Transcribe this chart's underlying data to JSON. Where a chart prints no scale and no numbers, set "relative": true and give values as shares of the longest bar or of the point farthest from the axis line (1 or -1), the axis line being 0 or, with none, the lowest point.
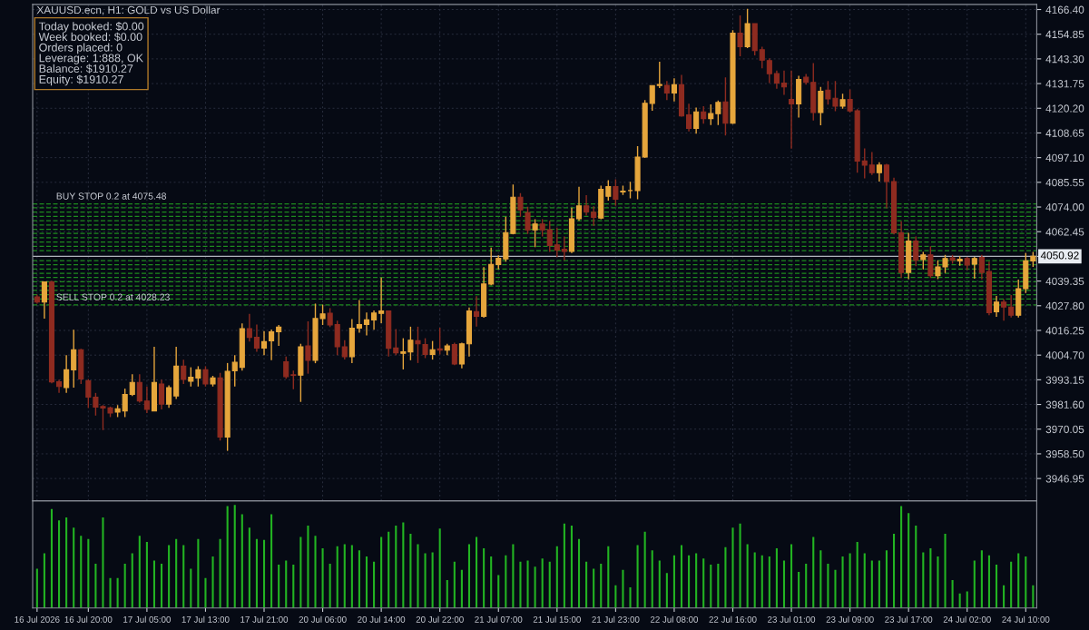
{
  "chart_data": [
    {
      "type": "candlestick",
      "title": "XAUUSD.ecn, H1: GOLD vs US Dollar",
      "annotations": [
        "Today booked: $0.00",
        "Week booked: $0.00",
        "Orders placed: 0",
        "Leverage: 1:888, OK",
        "Balance: $1910.27",
        "Equity: $1910.27"
      ],
      "categories": [
        null,
        null,
        null,
        null,
        null,
        null,
        null,
        null,
        null,
        null,
        null,
        null,
        null,
        null,
        null,
        null,
        null,
        null,
        null,
        null,
        null,
        null,
        null,
        null,
        null,
        null,
        null,
        null,
        null,
        null,
        null,
        null,
        null,
        null,
        null,
        null,
        null,
        null,
        null,
        null,
        null,
        null,
        null,
        null,
        null,
        null,
        null,
        null,
        null,
        null,
        null,
        null,
        null,
        null,
        null,
        null,
        null,
        null,
        null,
        null,
        null,
        null,
        null,
        null,
        null,
        null,
        null,
        null,
        null,
        null,
        null,
        null,
        null,
        null,
        null,
        null,
        null,
        null,
        null,
        null,
        null,
        null,
        null,
        null,
        null,
        null,
        null,
        null,
        null,
        null,
        null,
        null,
        null,
        null,
        null,
        null,
        null,
        null,
        null,
        null,
        null,
        null,
        null,
        null,
        null,
        null,
        null,
        null,
        null,
        null,
        null,
        null,
        null,
        null,
        null,
        null,
        null,
        null,
        null,
        null,
        null,
        null,
        null,
        null,
        null,
        null,
        null,
        null,
        null,
        null,
        null,
        null,
        null,
        null,
        null,
        null,
        null
      ],
      "ohlc": [
        [
          4031.9,
          4033.0,
          4028.8,
          4029.5
        ],
        [
          4029.5,
          4038.9,
          4021.8,
          4038.9
        ],
        [
          4038.9,
          4039.5,
          3991.5,
          3992.2
        ],
        [
          3992.2,
          3993.2,
          3987.0,
          3990.0
        ],
        [
          3989.5,
          4004.7,
          3987.0,
          3997.8
        ],
        [
          3997.8,
          4016.6,
          3989.5,
          4007.2
        ],
        [
          4007.2,
          4007.6,
          3991.2,
          3993.5
        ],
        [
          3992.6,
          3993.5,
          3980.0,
          3985.0
        ],
        [
          3985.0,
          3987.0,
          3976.4,
          3980.4
        ],
        [
          3980.6,
          3981.3,
          3969.6,
          3980.0
        ],
        [
          3980.0,
          3980.6,
          3975.7,
          3977.6
        ],
        [
          3978.0,
          3981.3,
          3975.7,
          3979.6
        ],
        [
          3978.6,
          3989.0,
          3975.7,
          3986.3
        ],
        [
          3986.3,
          3995.7,
          3985.6,
          3991.9
        ],
        [
          3991.9,
          3995.7,
          3982.5,
          3983.2
        ],
        [
          3983.2,
          3990.0,
          3977.6,
          3979.3
        ],
        [
          3978.6,
          4008.6,
          3978.6,
          3991.9
        ],
        [
          3991.2,
          3993.2,
          3979.3,
          3981.8
        ],
        [
          3981.8,
          3990.5,
          3980.0,
          3989.5
        ],
        [
          3985.6,
          4008.6,
          3984.2,
          3999.5
        ],
        [
          3999.5,
          4002.5,
          3991.2,
          3993.3
        ],
        [
          3992.5,
          3999.0,
          3990.0,
          3994.3
        ],
        [
          3994.0,
          3999.5,
          3990.0,
          3997.8
        ],
        [
          3997.8,
          3999.5,
          3990.0,
          3991.2
        ],
        [
          3991.2,
          3995.0,
          3990.0,
          3994.0
        ],
        [
          3994.0,
          3996.4,
          3964.7,
          3966.4
        ],
        [
          3966.4,
          4001.0,
          3959.9,
          3997.1
        ],
        [
          3997.4,
          4004.7,
          3990.0,
          4001.3
        ],
        [
          3999.0,
          4019.5,
          3997.4,
          4017.1
        ],
        [
          4017.1,
          4024.0,
          4011.0,
          4013.0
        ],
        [
          4013.0,
          4019.0,
          4006.3,
          4008.0
        ],
        [
          4008.0,
          4015.9,
          4004.7,
          4011.0
        ],
        [
          4011.4,
          4016.7,
          4002.3,
          4015.6
        ],
        [
          4015.6,
          4018.8,
          4009.0,
          4017.8
        ],
        [
          4001.6,
          4004.0,
          3993.6,
          3994.6
        ],
        [
          3995.5,
          3997.4,
          3988.7,
          3995.2
        ],
        [
          3995.3,
          4010.0,
          3982.8,
          4008.6
        ],
        [
          4009.0,
          4020.5,
          3996.0,
          4002.3
        ],
        [
          4002.3,
          4028.8,
          4000.9,
          4021.8
        ],
        [
          4021.8,
          4028.3,
          4018.8,
          4024.0
        ],
        [
          4024.3,
          4026.7,
          4017.8,
          4018.8
        ],
        [
          4019.0,
          4020.8,
          4004.7,
          4008.6
        ],
        [
          4008.6,
          4011.7,
          4002.6,
          4004.0
        ],
        [
          4004.0,
          4021.6,
          4000.9,
          4017.3
        ],
        [
          4017.3,
          4030.5,
          4015.2,
          4019.0
        ],
        [
          4019.0,
          4024.6,
          4013.9,
          4021.2
        ],
        [
          4021.2,
          4025.6,
          4016.6,
          4024.4
        ],
        [
          4024.2,
          4041.0,
          4019.6,
          4025.3
        ],
        [
          4025.3,
          4025.6,
          4004.0,
          4007.9
        ],
        [
          4008.0,
          4016.9,
          4004.7,
          4005.8
        ],
        [
          4005.5,
          4012.6,
          3998.0,
          4006.2
        ],
        [
          4006.2,
          4018.0,
          4002.3,
          4011.7
        ],
        [
          4011.4,
          4018.0,
          4001.0,
          4010.0
        ],
        [
          4009.6,
          4012.6,
          4003.3,
          4005.0
        ],
        [
          4005.0,
          4011.3,
          4002.6,
          4007.2
        ],
        [
          4007.6,
          4017.5,
          4005.0,
          4007.0
        ],
        [
          4007.0,
          4010.0,
          4004.7,
          4009.0
        ],
        [
          4009.6,
          4010.5,
          4000.0,
          4000.5
        ],
        [
          4000.5,
          4010.5,
          3998.5,
          4010.0
        ],
        [
          4010.0,
          4027.0,
          4004.0,
          4025.3
        ],
        [
          4025.0,
          4032.3,
          4018.0,
          4022.9
        ],
        [
          4022.9,
          4045.9,
          4022.2,
          4038.0
        ],
        [
          4037.9,
          4055.0,
          4037.4,
          4047.1
        ],
        [
          4047.1,
          4051.4,
          4044.8,
          4050.0
        ],
        [
          4049.7,
          4069.4,
          4048.4,
          4062.0
        ],
        [
          4061.6,
          4084.5,
          4061.2,
          4078.6
        ],
        [
          4078.6,
          4080.5,
          4069.5,
          4072.7
        ],
        [
          4071.3,
          4074.0,
          4061.4,
          4063.3
        ],
        [
          4063.3,
          4068.3,
          4055.2,
          4066.0
        ],
        [
          4066.0,
          4068.3,
          4060.2,
          4063.3
        ],
        [
          4063.4,
          4067.5,
          4053.0,
          4056.0
        ],
        [
          4056.3,
          4064.4,
          4050.5,
          4053.9
        ],
        [
          4054.2,
          4060.2,
          4049.1,
          4053.2
        ],
        [
          4053.2,
          4073.7,
          4052.5,
          4068.5
        ],
        [
          4068.5,
          4083.5,
          4067.5,
          4074.5
        ],
        [
          4074.5,
          4079.5,
          4070.0,
          4071.7
        ],
        [
          4071.5,
          4074.3,
          4065.2,
          4069.2
        ],
        [
          4068.8,
          4084.0,
          4068.3,
          4082.3
        ],
        [
          4079.0,
          4086.5,
          4077.0,
          4083.6
        ],
        [
          4083.6,
          4087.0,
          4074.5,
          4077.6
        ],
        [
          4081.0,
          4084.0,
          4079.6,
          4081.4
        ],
        [
          4081.7,
          4085.8,
          4078.0,
          4081.7
        ],
        [
          4081.7,
          4102.5,
          4077.6,
          4097.4
        ],
        [
          4097.4,
          4124.0,
          4097.0,
          4122.5
        ],
        [
          4122.5,
          4130.8,
          4119.0,
          4130.8
        ],
        [
          4130.9,
          4142.0,
          4129.7,
          4131.3
        ],
        [
          4130.9,
          4133.0,
          4124.0,
          4127.4
        ],
        [
          4127.4,
          4134.2,
          4123.4,
          4131.2
        ],
        [
          4131.2,
          4135.8,
          4116.3,
          4116.6
        ],
        [
          4117.1,
          4122.3,
          4109.4,
          4110.8
        ],
        [
          4110.8,
          4120.5,
          4108.3,
          4118.5
        ],
        [
          4118.5,
          4121.2,
          4113.0,
          4115.4
        ],
        [
          4115.4,
          4122.0,
          4112.3,
          4117.7
        ],
        [
          4117.7,
          4123.8,
          4112.3,
          4122.9
        ],
        [
          4123.2,
          4134.7,
          4107.5,
          4113.2
        ],
        [
          4113.2,
          4156.7,
          4112.9,
          4155.3
        ],
        [
          4155.3,
          4163.6,
          4144.5,
          4149.0
        ],
        [
          4149.0,
          4166.7,
          4148.3,
          4159.8
        ],
        [
          4159.8,
          4159.8,
          4145.0,
          4147.2
        ],
        [
          4147.6,
          4149.0,
          4138.9,
          4142.7
        ],
        [
          4142.5,
          4143.6,
          4132.0,
          4136.4
        ],
        [
          4136.4,
          4137.8,
          4129.3,
          4132.0
        ],
        [
          4132.0,
          4137.8,
          4126.5,
          4130.2
        ],
        [
          4124.3,
          4137.8,
          4101.3,
          4122.2
        ],
        [
          4122.2,
          4135.4,
          4115.9,
          4133.7
        ],
        [
          4134.7,
          4136.2,
          4131.2,
          4132.3
        ],
        [
          4132.3,
          4141.3,
          4114.5,
          4118.2
        ],
        [
          4118.2,
          4130.2,
          4112.2,
          4128.1
        ],
        [
          4128.7,
          4132.9,
          4121.9,
          4124.6
        ],
        [
          4124.9,
          4132.9,
          4118.8,
          4121.2
        ],
        [
          4121.2,
          4127.0,
          4120.0,
          4124.2
        ],
        [
          4124.3,
          4129.0,
          4118.2,
          4119.0
        ],
        [
          4119.0,
          4119.8,
          4090.1,
          4095.5
        ],
        [
          4095.5,
          4101.4,
          4087.4,
          4093.6
        ],
        [
          4093.6,
          4099.7,
          4089.0,
          4090.1
        ],
        [
          4090.1,
          4094.9,
          4085.9,
          4093.6
        ],
        [
          4093.6,
          4094.2,
          4073.4,
          4085.9
        ],
        [
          4085.9,
          4087.7,
          4061.2,
          4061.9
        ],
        [
          4061.9,
          4067.3,
          4040.8,
          4043.4
        ],
        [
          4043.4,
          4061.9,
          4040.2,
          4058.1
        ],
        [
          4058.1,
          4060.2,
          4046.3,
          4049.1
        ],
        [
          4049.4,
          4053.0,
          4044.8,
          4051.6
        ],
        [
          4051.6,
          4055.6,
          4040.8,
          4041.9
        ],
        [
          4041.9,
          4049.1,
          4040.2,
          4046.0
        ],
        [
          4046.0,
          4051.6,
          4043.1,
          4049.9
        ],
        [
          4050.2,
          4051.6,
          4047.5,
          4049.1
        ],
        [
          4048.8,
          4051.0,
          4046.5,
          4049.6
        ],
        [
          4049.9,
          4050.6,
          4044.5,
          4046.9
        ],
        [
          4047.3,
          4050.6,
          4040.5,
          4049.9
        ],
        [
          4050.4,
          4051.6,
          4040.1,
          4043.4
        ],
        [
          4043.8,
          4048.4,
          4023.4,
          4024.6
        ],
        [
          4025.0,
          4032.4,
          4022.6,
          4029.5
        ],
        [
          4029.5,
          4030.8,
          4020.8,
          4027.2
        ],
        [
          4027.2,
          4032.8,
          4022.3,
          4023.4
        ],
        [
          4023.4,
          4040.0,
          4022.3,
          4035.8
        ],
        [
          4035.8,
          4052.5,
          4033.8,
          4048.8
        ],
        [
          4048.8,
          4053.0,
          4046.0,
          4050.9
        ]
      ],
      "colors": [
        "#8e2b20",
        "#e6a63c",
        "#8e2b20",
        "#8e2b20",
        "#e6a63c",
        "#e6a63c",
        "#8e2b20",
        "#8e2b20",
        "#8e2b20",
        "#8e2b20",
        "#8e2b20",
        "#e6a63c",
        "#e6a63c",
        "#e6a63c",
        "#8e2b20",
        "#8e2b20",
        "#e6a63c",
        "#8e2b20",
        "#e6a63c",
        "#e6a63c",
        "#8e2b20",
        "#e6a63c",
        "#e6a63c",
        "#8e2b20",
        "#e6a63c",
        "#8e2b20",
        "#e6a63c",
        "#e6a63c",
        "#e6a63c",
        "#8e2b20",
        "#8e2b20",
        "#e6a63c",
        "#e6a63c",
        "#e6a63c",
        "#8e2b20",
        "#8e2b20",
        "#e6a63c",
        "#8e2b20",
        "#e6a63c",
        "#e6a63c",
        "#8e2b20",
        "#8e2b20",
        "#8e2b20",
        "#e6a63c",
        "#e6a63c",
        "#e6a63c",
        "#e6a63c",
        "#e6a63c",
        "#8e2b20",
        "#8e2b20",
        "#e6a63c",
        "#e6a63c",
        "#8e2b20",
        "#8e2b20",
        "#e6a63c",
        "#8e2b20",
        "#e6a63c",
        "#8e2b20",
        "#e6a63c",
        "#e6a63c",
        "#8e2b20",
        "#e6a63c",
        "#e6a63c",
        "#e6a63c",
        "#e6a63c",
        "#e6a63c",
        "#8e2b20",
        "#8e2b20",
        "#e6a63c",
        "#8e2b20",
        "#8e2b20",
        "#8e2b20",
        "#8e2b20",
        "#e6a63c",
        "#e6a63c",
        "#8e2b20",
        "#8e2b20",
        "#e6a63c",
        "#e6a63c",
        "#8e2b20",
        "#e6a63c",
        "#e6a63c",
        "#e6a63c",
        "#e6a63c",
        "#e6a63c",
        "#e6a63c",
        "#8e2b20",
        "#e6a63c",
        "#8e2b20",
        "#8e2b20",
        "#e6a63c",
        "#8e2b20",
        "#e6a63c",
        "#e6a63c",
        "#8e2b20",
        "#e6a63c",
        "#8e2b20",
        "#e6a63c",
        "#8e2b20",
        "#8e2b20",
        "#8e2b20",
        "#8e2b20",
        "#8e2b20",
        "#8e2b20",
        "#e6a63c",
        "#8e2b20",
        "#8e2b20",
        "#e6a63c",
        "#8e2b20",
        "#8e2b20",
        "#e6a63c",
        "#8e2b20",
        "#8e2b20",
        "#8e2b20",
        "#8e2b20",
        "#e6a63c",
        "#8e2b20",
        "#8e2b20",
        "#8e2b20",
        "#e6a63c",
        "#8e2b20",
        "#e6a63c",
        "#8e2b20",
        "#e6a63c",
        "#e6a63c",
        "#8e2b20",
        "#e6a63c",
        "#8e2b20",
        "#e6a63c",
        "#8e2b20",
        "#8e2b20",
        "#e6a63c",
        "#8e2b20",
        "#8e2b20",
        "#e6a63c",
        "#e6a63c",
        "#e6a63c"
      ],
      "ylim": [
        3936.5,
        4168.8
      ],
      "tick_labels": "y",
      "yticks": [
        3946.95,
        {
          "value": 3958.5,
          "label": "3958.50"
        },
        3970.05,
        {
          "value": 3981.6,
          "label": "3981.60"
        },
        3993.15,
        {
          "value": 4004.7,
          "label": "4004.70"
        },
        4016.25,
        {
          "value": 4027.8,
          "label": "4027.80"
        },
        4039.35,
        {
          "value": 4050.9,
          "label": null
        },
        4062.45,
        {
          "value": 4074.0,
          "label": "4074.00"
        },
        4085.55,
        {
          "value": 4097.1,
          "label": "4097.10"
        },
        4108.65,
        {
          "value": 4120.2,
          "label": "4120.20"
        },
        4131.75,
        {
          "value": 4143.3,
          "label": "4143.30"
        },
        4154.85,
        {
          "value": 4166.4,
          "label": "4166.40"
        }
      ],
      "grid": true,
      "ref_lines": [
        {
          "axis": "y",
          "value": 4050.92,
          "label": "4050.92",
          "color": "#b0b4bc",
          "line_style": "solid"
        },
        {
          "axis": "y",
          "value": 4075.48,
          "label": "BUY STOP 0.2 at 4075.48",
          "color": "#1e8a1e",
          "line_style": "dashed"
        },
        {
          "axis": "y",
          "value": 4073.6,
          "color": "#1e8a1e",
          "line_style": "dashed"
        },
        {
          "axis": "y",
          "value": 4071.6,
          "color": "#1e8a1e",
          "line_style": "dashed"
        },
        {
          "axis": "y",
          "value": 4069.6,
          "color": "#1e8a1e",
          "line_style": "dashed"
        },
        {
          "axis": "y",
          "value": 4067.6,
          "color": "#1e8a1e",
          "line_style": "dashed"
        },
        {
          "axis": "y",
          "value": 4065.6,
          "color": "#1e8a1e",
          "line_style": "dashed"
        },
        {
          "axis": "y",
          "value": 4063.6,
          "color": "#1e8a1e",
          "line_style": "dashed"
        },
        {
          "axis": "y",
          "value": 4061.6,
          "color": "#1e8a1e",
          "line_style": "dashed"
        },
        {
          "axis": "y",
          "value": 4059.6,
          "color": "#1e8a1e",
          "line_style": "dashed"
        },
        {
          "axis": "y",
          "value": 4057.6,
          "color": "#1e8a1e",
          "line_style": "dashed"
        },
        {
          "axis": "y",
          "value": 4055.6,
          "color": "#1e8a1e",
          "line_style": "dashed"
        },
        {
          "axis": "y",
          "value": 4053.6,
          "color": "#1e8a1e",
          "line_style": "dashed"
        },
        {
          "axis": "y",
          "value": 4048.9,
          "color": "#1e8a1e",
          "line_style": "dashed"
        },
        {
          "axis": "y",
          "value": 4047.0,
          "color": "#1e8a1e",
          "line_style": "dashed"
        },
        {
          "axis": "y",
          "value": 4045.0,
          "color": "#1e8a1e",
          "line_style": "dashed"
        },
        {
          "axis": "y",
          "value": 4043.0,
          "color": "#1e8a1e",
          "line_style": "dashed"
        },
        {
          "axis": "y",
          "value": 4041.0,
          "color": "#1e8a1e",
          "line_style": "dashed"
        },
        {
          "axis": "y",
          "value": 4039.0,
          "color": "#1e8a1e",
          "line_style": "dashed"
        },
        {
          "axis": "y",
          "value": 4037.0,
          "color": "#1e8a1e",
          "line_style": "dashed"
        },
        {
          "axis": "y",
          "value": 4035.0,
          "color": "#1e8a1e",
          "line_style": "dashed"
        },
        {
          "axis": "y",
          "value": 4033.0,
          "color": "#1e8a1e",
          "line_style": "dashed"
        },
        {
          "axis": "y",
          "value": 4031.0,
          "color": "#1e8a1e",
          "line_style": "dashed"
        },
        {
          "axis": "y",
          "value": 4028.23,
          "label": "SELL STOP 0.2 at 4028.23",
          "color": "#1e8a1e",
          "line_style": "dashed"
        }
      ]
    },
    {
      "type": "bar",
      "relative": true,
      "color": "#22b422",
      "categories": [
        "16 Jul 2026",
        null,
        null,
        null,
        null,
        null,
        null,
        "16 Jul 20:00",
        null,
        null,
        null,
        null,
        null,
        null,
        null,
        "17 Jul 05:00",
        null,
        null,
        null,
        null,
        null,
        null,
        null,
        "17 Jul 13:00",
        null,
        null,
        null,
        null,
        null,
        null,
        null,
        "17 Jul 21:00",
        null,
        null,
        null,
        null,
        null,
        null,
        null,
        "20 Jul 06:00",
        null,
        null,
        null,
        null,
        null,
        null,
        null,
        "20 Jul 14:00",
        null,
        null,
        null,
        null,
        null,
        null,
        null,
        "20 Jul 22:00",
        null,
        null,
        null,
        null,
        null,
        null,
        null,
        "21 Jul 07:00",
        null,
        null,
        null,
        null,
        null,
        null,
        null,
        "21 Jul 15:00",
        null,
        null,
        null,
        null,
        null,
        null,
        null,
        "21 Jul 23:00",
        null,
        null,
        null,
        null,
        null,
        null,
        null,
        "22 Jul 08:00",
        null,
        null,
        null,
        null,
        null,
        null,
        null,
        "22 Jul 16:00",
        null,
        null,
        null,
        null,
        null,
        null,
        null,
        "23 Jul 01:00",
        null,
        null,
        null,
        null,
        null,
        null,
        null,
        "23 Jul 09:00",
        null,
        null,
        null,
        null,
        null,
        null,
        null,
        "23 Jul 17:00",
        null,
        null,
        null,
        null,
        null,
        null,
        null,
        "24 Jul 02:00",
        null,
        null,
        null,
        null,
        null,
        null,
        null,
        "24 Jul 10:00",
        null
      ],
      "values": [
        0.38,
        0.53,
        0.96,
        0.85,
        0.88,
        0.78,
        0.7,
        0.67,
        0.43,
        0.88,
        0.29,
        0.29,
        0.43,
        0.53,
        0.7,
        0.64,
        0.46,
        0.43,
        0.61,
        0.67,
        0.61,
        0.38,
        0.67,
        0.29,
        0.5,
        0.67,
        0.99,
        1.0,
        0.91,
        0.78,
        0.67,
        0.66,
        0.91,
        0.42,
        0.46,
        0.42,
        0.69,
        0.8,
        0.7,
        0.58,
        0.43,
        0.6,
        0.62,
        0.61,
        0.56,
        0.5,
        0.45,
        0.69,
        0.74,
        0.8,
        0.83,
        0.72,
        0.62,
        0.53,
        0.54,
        0.77,
        0.27,
        0.45,
        0.37,
        0.62,
        0.69,
        0.58,
        0.5,
        0.32,
        0.51,
        0.62,
        0.45,
        0.46,
        0.4,
        0.48,
        0.45,
        0.6,
        0.82,
        0.8,
        0.67,
        0.45,
        0.38,
        0.43,
        0.6,
        0.22,
        0.37,
        0.2,
        0.61,
        0.74,
        0.56,
        0.46,
        0.34,
        0.51,
        0.61,
        0.51,
        0.53,
        0.48,
        0.42,
        0.43,
        0.59,
        0.78,
        0.82,
        0.62,
        0.54,
        0.51,
        0.5,
        0.58,
        0.46,
        0.62,
        0.35,
        0.43,
        0.69,
        0.56,
        0.43,
        0.37,
        0.5,
        0.53,
        0.64,
        0.53,
        0.46,
        0.46,
        0.56,
        0.72,
        0.99,
        0.92,
        0.8,
        0.54,
        0.58,
        0.5,
        0.72,
        0.27,
        0.14,
        0.16,
        0.46,
        0.56,
        0.51,
        0.42,
        0.22,
        0.45,
        0.53,
        0.5,
        0.22
      ]
    }
  ]
}
